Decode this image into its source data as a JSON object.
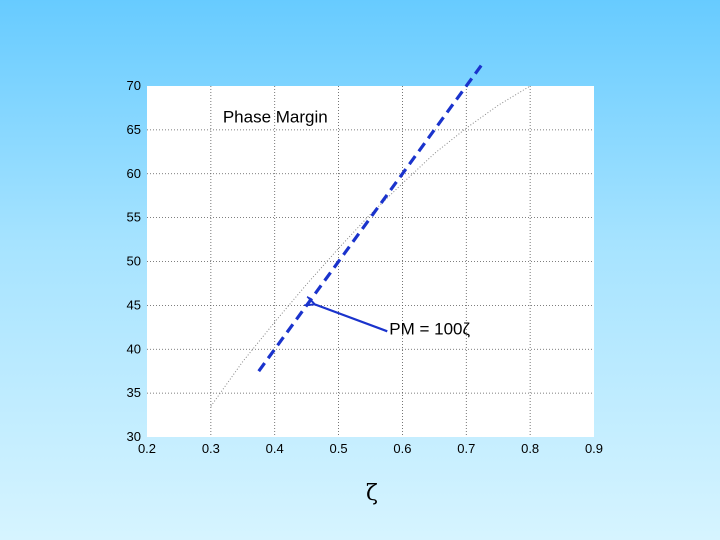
{
  "chart_data": {
    "type": "line",
    "title": "",
    "xlabel": "ζ",
    "ylabel": "",
    "xlim": [
      0.2,
      0.9
    ],
    "ylim": [
      30,
      70
    ],
    "grid": true,
    "x_ticks": [
      "0.2",
      "0.3",
      "0.4",
      "0.5",
      "0.6",
      "0.7",
      "0.8",
      "0.9"
    ],
    "y_ticks": [
      "30",
      "35",
      "40",
      "45",
      "50",
      "55",
      "60",
      "65",
      "70"
    ],
    "series": [
      {
        "name": "",
        "style": "dotted",
        "color": "#888888",
        "x": [
          0.3,
          0.35,
          0.4,
          0.45,
          0.5,
          0.55,
          0.6,
          0.65,
          0.7,
          0.75,
          0.8
        ],
        "y": [
          33.5,
          38.6,
          43.1,
          47.4,
          51.5,
          55.4,
          58.9,
          62.3,
          65.2,
          67.8,
          70.0
        ]
      },
      {
        "name": "",
        "style": "dashed",
        "color": "#1a33cc",
        "x": [
          0.375,
          0.725
        ],
        "y": [
          37.5,
          72.5
        ]
      }
    ],
    "annotations": [
      {
        "text": "Phase Margin",
        "x": 0.3,
        "y": 66.5
      },
      {
        "text": "PM = 100ζ",
        "arrow_to": [
          0.455,
          45.5
        ],
        "arrow_from": [
          0.57,
          42.5
        ],
        "text_x": 0.57,
        "text_y": 42.0
      }
    ]
  }
}
